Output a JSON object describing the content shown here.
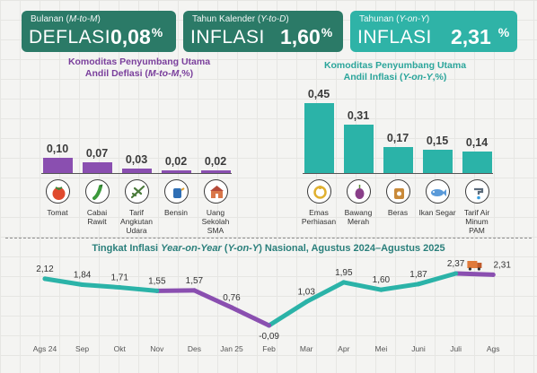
{
  "cards": {
    "monthly": {
      "caption_plain": "Bulanan (",
      "caption_italic": "M-to-M",
      "caption_end": ")",
      "label": "DEFLASI",
      "value": "0,08",
      "unit": "%"
    },
    "ytd": {
      "caption_plain": "Tahun Kalender (",
      "caption_italic": "Y-to-D",
      "caption_end": ")",
      "label": "INFLASI",
      "value": "1,60",
      "unit": "%"
    },
    "yoy": {
      "caption_plain": "Tahunan (",
      "caption_italic": "Y-on-Y",
      "caption_end": ")",
      "label": "INFLASI",
      "value": "2,31",
      "unit": "%"
    }
  },
  "colors": {
    "purple": "#8a4fb0",
    "teal": "#2bb3a8",
    "dark_green": "#2b7a67",
    "teal_card": "#2fb3a7"
  },
  "chart_data": [
    {
      "type": "bar",
      "title_line1": "Komoditas Penyumbang Utama",
      "title_line2_plain": "Andil Deflasi (",
      "title_line2_italic": "M-to-M",
      "title_line2_end": ",%)",
      "categories": [
        "Tomat",
        "Cabai Rawit",
        "Tarif Angkutan Udara",
        "Bensin",
        "Uang Sekolah SMA"
      ],
      "category_lines": [
        [
          "Tomat"
        ],
        [
          "Cabai",
          "Rawit"
        ],
        [
          "Tarif",
          "Angkutan",
          "Udara"
        ],
        [
          "Bensin"
        ],
        [
          "Uang",
          "Sekolah",
          "SMA"
        ]
      ],
      "icons": [
        "tomato-icon",
        "chili-icon",
        "airplane-icon",
        "fuel-nozzle-icon",
        "school-icon"
      ],
      "values": [
        0.1,
        0.07,
        0.03,
        0.02,
        0.02
      ],
      "labels": [
        "0,10",
        "0,07",
        "0,03",
        "0,02",
        "0,02"
      ],
      "color": "#8a4fb0"
    },
    {
      "type": "bar",
      "title_line1": "Komoditas Penyumbang Utama",
      "title_line2_plain": "Andil Inflasi (",
      "title_line2_italic": "Y-on-Y",
      "title_line2_end": ",%)",
      "categories": [
        "Emas Perhiasan",
        "Bawang Merah",
        "Beras",
        "Ikan Segar",
        "Tarif Air Minum PAM"
      ],
      "category_lines": [
        [
          "Emas",
          "Perhiasan"
        ],
        [
          "Bawang",
          "Merah"
        ],
        [
          "Beras"
        ],
        [
          "Ikan Segar"
        ],
        [
          "Tarif Air",
          "Minum",
          "PAM"
        ]
      ],
      "icons": [
        "jewelry-icon",
        "shallot-icon",
        "rice-bag-icon",
        "fish-icon",
        "water-tap-icon"
      ],
      "values": [
        0.45,
        0.31,
        0.17,
        0.15,
        0.14
      ],
      "labels": [
        "0,45",
        "0,31",
        "0,17",
        "0,15",
        "0,14"
      ],
      "color": "#2bb3a8"
    },
    {
      "type": "line",
      "title_plain1": "Tingkat Inflasi ",
      "title_italic1": "Year-on-Year",
      "title_plain2": " (",
      "title_italic2": "Y-on-Y",
      "title_plain3": ") Nasional, Agustus 2024–Agustus 2025",
      "x": [
        "Ags 24",
        "Sep",
        "Okt",
        "Nov",
        "Des",
        "Jan 25",
        "Feb",
        "Mar",
        "Apr",
        "Mei",
        "Juni",
        "Juli",
        "Ags"
      ],
      "values": [
        2.12,
        1.84,
        1.71,
        1.55,
        1.57,
        0.76,
        -0.09,
        1.03,
        1.95,
        1.6,
        1.87,
        2.37,
        2.31
      ],
      "labels": [
        "2,12",
        "1,84",
        "1,71",
        "1,55",
        "1,57",
        "0,76",
        "-0,09",
        "1,03",
        "1,95",
        "1,60",
        "1,87",
        "2,37",
        "2,31"
      ],
      "segment_colors": [
        "#2bb3a8",
        "#2bb3a8",
        "#2bb3a8",
        "#8a4fb0",
        "#8a4fb0",
        "#8a4fb0",
        "#2bb3a8",
        "#2bb3a8",
        "#2bb3a8",
        "#2bb3a8",
        "#2bb3a8",
        "#8a4fb0"
      ],
      "marker_icon": "delivery-truck-icon"
    }
  ]
}
